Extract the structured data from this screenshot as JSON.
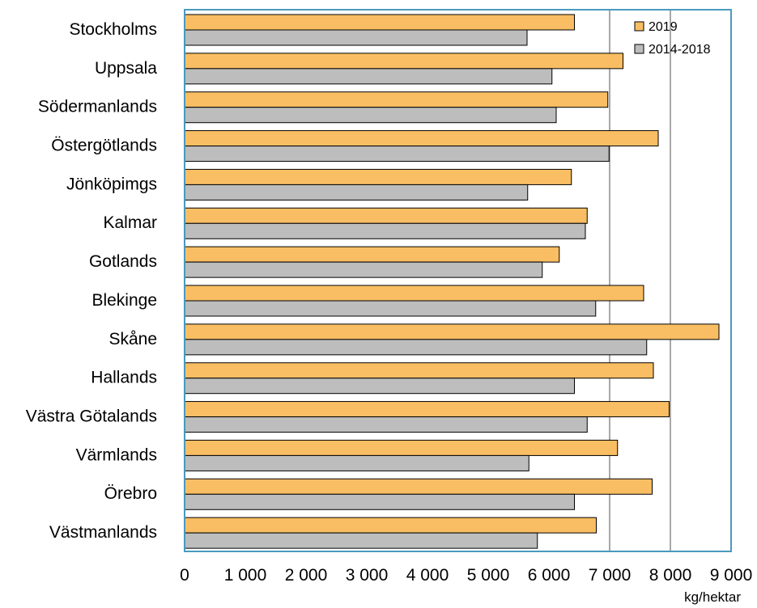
{
  "chart_data": {
    "type": "bar",
    "orientation": "horizontal",
    "title": "",
    "xlabel": "kg/hektar",
    "ylabel": "",
    "xlim": [
      0,
      9000
    ],
    "xticks": [
      0,
      1000,
      2000,
      3000,
      4000,
      5000,
      6000,
      7000,
      8000,
      9000
    ],
    "xtick_labels": [
      "0",
      "1 000",
      "2 000",
      "3 000",
      "4 000",
      "5 000",
      "6 000",
      "7 000",
      "8 000",
      "9 000"
    ],
    "grid": "vertical lines at 7 000 and 8 000",
    "legend_position": "top-right",
    "categories": [
      "Stockholms",
      "Uppsala",
      "Södermanlands",
      "Östergötlands",
      "Jönköpimgs",
      "Kalmar",
      "Gotlands",
      "Blekinge",
      "Skåne",
      "Hallands",
      "Västra Götalands",
      "Värmlands",
      "Örebro",
      "Västmanlands"
    ],
    "series": [
      {
        "name": "2019",
        "color": "#F9BE63",
        "values": [
          6420,
          7220,
          6970,
          7800,
          6370,
          6630,
          6170,
          7560,
          8800,
          7720,
          7980,
          7130,
          7700,
          6780
        ]
      },
      {
        "name": "2014-2018",
        "color": "#BDBDBD",
        "values": [
          5640,
          6050,
          6120,
          6990,
          5650,
          6600,
          5890,
          6770,
          7610,
          6420,
          6630,
          5670,
          6420,
          5810
        ]
      }
    ],
    "frame_color": "#4A9ABF"
  }
}
